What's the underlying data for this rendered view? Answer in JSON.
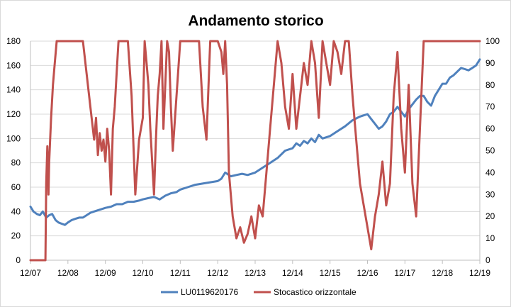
{
  "chart_data": {
    "type": "line",
    "title": "Andamento storico",
    "x_ticks": [
      "12/07",
      "12/08",
      "12/09",
      "12/10",
      "12/11",
      "12/12",
      "12/13",
      "12/14",
      "12/15",
      "12/16",
      "12/17",
      "12/18",
      "12/19"
    ],
    "ylim_left": [
      0,
      180
    ],
    "yticks_left": [
      0,
      20,
      40,
      60,
      80,
      100,
      120,
      140,
      160,
      180
    ],
    "ylim_right": [
      0,
      100
    ],
    "yticks_right": [
      0,
      10,
      20,
      30,
      40,
      50,
      60,
      70,
      80,
      90,
      100
    ],
    "grid": true,
    "legend_position": "bottom",
    "series": [
      {
        "name": "LU0119620176",
        "axis": "left",
        "color": "#4f81bd",
        "x": [
          0,
          0.08,
          0.17,
          0.25,
          0.33,
          0.42,
          0.5,
          0.58,
          0.67,
          0.75,
          0.83,
          0.92,
          1,
          1.1,
          1.2,
          1.3,
          1.4,
          1.5,
          1.6,
          1.7,
          1.8,
          1.9,
          2,
          2.15,
          2.3,
          2.45,
          2.6,
          2.75,
          2.9,
          3,
          3.15,
          3.3,
          3.45,
          3.6,
          3.75,
          3.9,
          4,
          4.2,
          4.4,
          4.6,
          4.8,
          5,
          5.1,
          5.2,
          5.35,
          5.5,
          5.65,
          5.8,
          6,
          6.2,
          6.4,
          6.6,
          6.8,
          7,
          7.1,
          7.2,
          7.3,
          7.4,
          7.5,
          7.6,
          7.7,
          7.8,
          8,
          8.2,
          8.4,
          8.6,
          8.8,
          9,
          9.1,
          9.2,
          9.3,
          9.4,
          9.5,
          9.6,
          9.7,
          9.8,
          10,
          10.1,
          10.2,
          10.3,
          10.4,
          10.5,
          10.6,
          10.7,
          10.8,
          10.9,
          11,
          11.1,
          11.2,
          11.3,
          11.4,
          11.5,
          11.6,
          11.7,
          11.8,
          11.9,
          12
        ],
        "y": [
          44,
          40,
          38,
          37,
          40,
          35,
          37,
          38,
          33,
          31,
          30,
          29,
          31,
          33,
          34,
          35,
          35,
          37,
          39,
          40,
          41,
          42,
          43,
          44,
          46,
          46,
          48,
          48,
          49,
          50,
          51,
          52,
          50,
          53,
          55,
          56,
          58,
          60,
          62,
          63,
          64,
          65,
          67,
          72,
          69,
          70,
          71,
          70,
          72,
          76,
          80,
          84,
          90,
          92,
          96,
          94,
          98,
          96,
          100,
          97,
          103,
          100,
          102,
          106,
          110,
          115,
          118,
          120,
          116,
          112,
          108,
          110,
          114,
          120,
          122,
          126,
          118,
          124,
          128,
          132,
          135,
          135,
          130,
          127,
          135,
          140,
          145,
          145,
          150,
          152,
          155,
          158,
          157,
          156,
          158,
          160,
          165
        ]
      },
      {
        "name": "Stocastico orizzontale",
        "axis": "right",
        "color": "#c0504d",
        "x": [
          0,
          0.4,
          0.42,
          0.45,
          0.48,
          0.5,
          0.55,
          0.6,
          0.65,
          0.7,
          0.75,
          0.8,
          1,
          1.4,
          1.6,
          1.7,
          1.75,
          1.8,
          1.85,
          1.9,
          1.95,
          2,
          2.05,
          2.1,
          2.15,
          2.2,
          2.25,
          2.3,
          2.35,
          2.4,
          2.5,
          2.6,
          2.7,
          2.8,
          2.9,
          3,
          3.05,
          3.1,
          3.15,
          3.2,
          3.25,
          3.3,
          3.35,
          3.4,
          3.45,
          3.5,
          3.55,
          3.6,
          3.65,
          3.7,
          3.75,
          3.8,
          4,
          4.5,
          4.6,
          4.7,
          4.8,
          4.9,
          5,
          5.1,
          5.15,
          5.2,
          5.25,
          5.3,
          5.4,
          5.5,
          5.6,
          5.7,
          5.8,
          5.9,
          6,
          6.1,
          6.2,
          6.3,
          6.4,
          6.5,
          6.6,
          6.7,
          6.8,
          6.9,
          7,
          7.1,
          7.2,
          7.3,
          7.4,
          7.5,
          7.6,
          7.7,
          7.8,
          7.9,
          8,
          8.1,
          8.2,
          8.3,
          8.4,
          8.5,
          8.6,
          8.7,
          8.8,
          8.9,
          9,
          9.1,
          9.2,
          9.3,
          9.4,
          9.5,
          9.6,
          9.7,
          9.8,
          9.9,
          10,
          10.1,
          10.2,
          10.3,
          10.4,
          10.5,
          10.6,
          10.7,
          10.8,
          10.9,
          11,
          11.5,
          12
        ],
        "y": [
          0,
          0,
          35,
          52,
          30,
          45,
          65,
          80,
          90,
          100,
          100,
          100,
          100,
          100,
          70,
          55,
          65,
          48,
          58,
          50,
          55,
          45,
          60,
          50,
          30,
          60,
          70,
          85,
          100,
          100,
          100,
          100,
          75,
          30,
          55,
          65,
          100,
          90,
          80,
          60,
          45,
          30,
          55,
          75,
          85,
          100,
          60,
          80,
          100,
          95,
          70,
          50,
          100,
          100,
          70,
          55,
          100,
          100,
          100,
          95,
          85,
          100,
          80,
          40,
          20,
          10,
          15,
          8,
          12,
          20,
          10,
          25,
          20,
          40,
          60,
          80,
          100,
          90,
          70,
          60,
          85,
          60,
          75,
          90,
          80,
          100,
          90,
          65,
          100,
          90,
          80,
          100,
          95,
          85,
          100,
          100,
          75,
          55,
          35,
          25,
          15,
          5,
          20,
          30,
          45,
          25,
          35,
          75,
          95,
          60,
          40,
          80,
          35,
          20,
          60,
          100,
          100,
          100,
          100,
          100,
          100,
          100,
          100
        ]
      }
    ]
  }
}
